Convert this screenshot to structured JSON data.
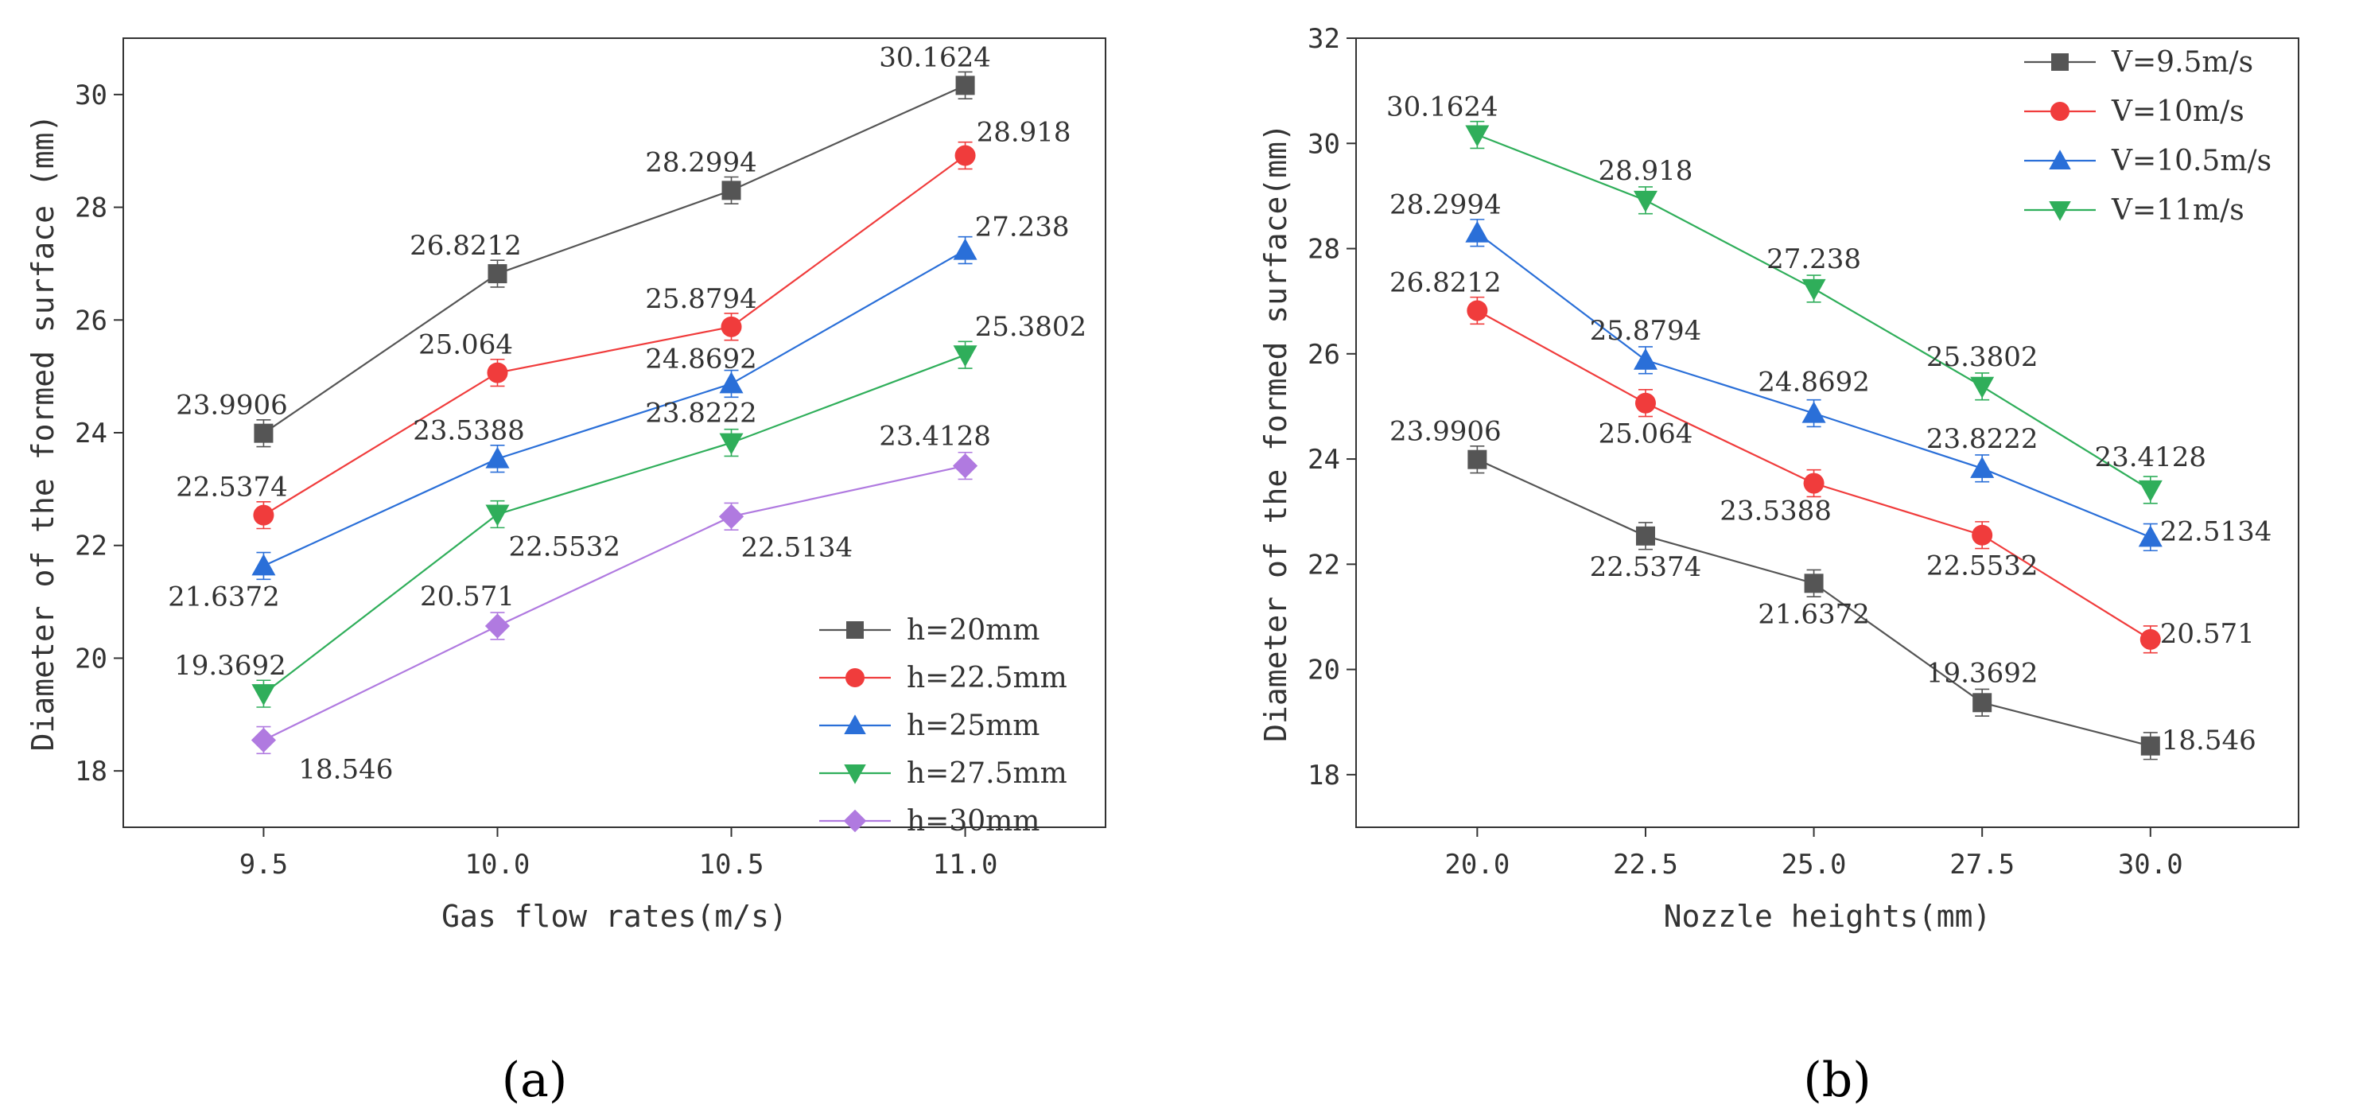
{
  "chart_data": [
    {
      "type": "line",
      "panel_label": "(a)",
      "xlabel": "Gas flow rates(m/s)",
      "ylabel": "Diameter of the formed surface (mm)",
      "xlim": [
        9.2,
        11.3
      ],
      "ylim": [
        17,
        31
      ],
      "x_ticks": [
        9.5,
        10.0,
        10.5,
        11.0
      ],
      "x_tick_labels": [
        "9.5",
        "10.0",
        "10.5",
        "11.0"
      ],
      "y_ticks": [
        18,
        20,
        22,
        24,
        26,
        28,
        30
      ],
      "y_tick_labels": [
        "18",
        "20",
        "22",
        "24",
        "26",
        "28",
        "30"
      ],
      "legend_position": "bottom-right",
      "x": [
        9.5,
        10.0,
        10.5,
        11.0
      ],
      "series": [
        {
          "name": "h=20mm",
          "color": "#555555",
          "marker": "square",
          "values": [
            23.9906,
            26.8212,
            28.2994,
            30.1624
          ],
          "labels": [
            "23.9906",
            "26.8212",
            "28.2994",
            "30.1624"
          ]
        },
        {
          "name": "h=22.5mm",
          "color": "#f03c3c",
          "marker": "circle",
          "values": [
            22.5374,
            25.064,
            25.8794,
            28.918
          ],
          "labels": [
            "22.5374",
            "25.064",
            "25.8794",
            "28.918"
          ]
        },
        {
          "name": "h=25mm",
          "color": "#2a6fd8",
          "marker": "triangle-up",
          "values": [
            21.6372,
            23.5388,
            24.8692,
            27.238
          ],
          "labels": [
            "21.6372",
            "23.5388",
            "24.8692",
            "27.238"
          ]
        },
        {
          "name": "h=27.5mm",
          "color": "#2fae5a",
          "marker": "triangle-down",
          "values": [
            19.3692,
            22.5532,
            23.8222,
            25.3802
          ],
          "labels": [
            "19.3692",
            "22.5532",
            "23.8222",
            "25.3802"
          ]
        },
        {
          "name": "h=30mm",
          "color": "#b07ae0",
          "marker": "diamond",
          "values": [
            18.546,
            20.571,
            22.5134,
            23.4128
          ],
          "labels": [
            "18.546",
            "20.571",
            "22.5134",
            "23.4128"
          ]
        }
      ]
    },
    {
      "type": "line",
      "panel_label": "(b)",
      "xlabel": "Nozzle heights(mm)",
      "ylabel": "Diameter of the formed surface(mm)",
      "xlim": [
        18.2,
        32.2
      ],
      "ylim": [
        17,
        32
      ],
      "x_ticks": [
        20.0,
        22.5,
        25.0,
        27.5,
        30.0
      ],
      "x_tick_labels": [
        "20.0",
        "22.5",
        "25.0",
        "27.5",
        "30.0"
      ],
      "y_ticks": [
        18,
        20,
        22,
        24,
        26,
        28,
        30,
        32
      ],
      "y_tick_labels": [
        "18",
        "20",
        "22",
        "24",
        "26",
        "28",
        "30",
        "32"
      ],
      "legend_position": "top-right",
      "x": [
        20.0,
        22.5,
        25.0,
        27.5,
        30.0
      ],
      "series": [
        {
          "name": "V=9.5m/s",
          "color": "#555555",
          "marker": "square",
          "values": [
            23.9906,
            22.5374,
            21.6372,
            19.3692,
            18.546
          ],
          "labels": [
            "23.9906",
            "22.5374",
            "21.6372",
            "19.3692",
            "18.546"
          ]
        },
        {
          "name": "V=10m/s",
          "color": "#f03c3c",
          "marker": "circle",
          "values": [
            26.8212,
            25.064,
            23.5388,
            22.5532,
            20.571
          ],
          "labels": [
            "26.8212",
            "25.064",
            "23.5388",
            "22.5532",
            "20.571"
          ]
        },
        {
          "name": "V=10.5m/s",
          "color": "#2a6fd8",
          "marker": "triangle-up",
          "values": [
            28.2994,
            25.8794,
            24.8692,
            23.8222,
            22.5134
          ],
          "labels": [
            "28.2994",
            "25.8794",
            "24.8692",
            "23.8222",
            "22.5134"
          ]
        },
        {
          "name": "V=11m/s",
          "color": "#2fae5a",
          "marker": "triangle-down",
          "values": [
            30.1624,
            28.918,
            27.238,
            25.3802,
            23.4128
          ],
          "labels": [
            "30.1624",
            "28.918",
            "27.238",
            "25.3802",
            "23.4128"
          ]
        }
      ]
    }
  ]
}
